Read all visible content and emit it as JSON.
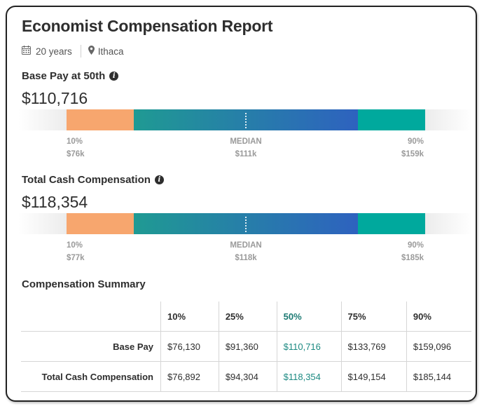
{
  "report": {
    "title": "Economist Compensation Report",
    "experience": "20 years",
    "location": "Ithaca"
  },
  "base_pay": {
    "label": "Base Pay at 50th",
    "value": "$110,716",
    "low_pct": "10%",
    "low_val": "$76k",
    "median_label": "MEDIAN",
    "median_val": "$111k",
    "high_pct": "90%",
    "high_val": "$159k"
  },
  "total_cash": {
    "label": "Total Cash Compensation",
    "value": "$118,354",
    "low_pct": "10%",
    "low_val": "$77k",
    "median_label": "MEDIAN",
    "median_val": "$118k",
    "high_pct": "90%",
    "high_val": "$185k"
  },
  "colors": {
    "low": "#f7a66e",
    "mid_start": "#1f9a93",
    "mid_end": "#2e62bf",
    "high": "#00a99d",
    "highlight": "#1c8a82"
  },
  "summary": {
    "title": "Compensation Summary",
    "columns": [
      "10%",
      "25%",
      "50%",
      "75%",
      "90%"
    ],
    "rows": [
      {
        "label": "Base Pay",
        "values": [
          "$76,130",
          "$91,360",
          "$110,716",
          "$133,769",
          "$159,096"
        ]
      },
      {
        "label": "Total Cash Compensation",
        "values": [
          "$76,892",
          "$94,304",
          "$118,354",
          "$149,154",
          "$185,144"
        ]
      }
    ]
  }
}
